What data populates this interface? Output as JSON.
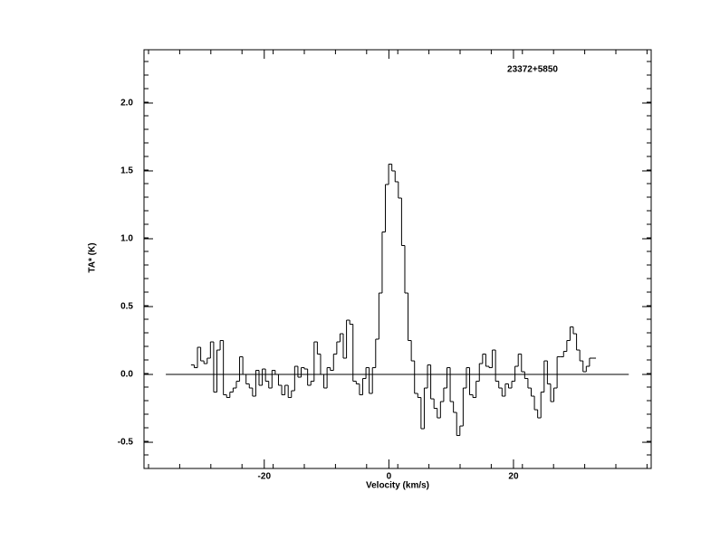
{
  "chart_data": {
    "type": "step",
    "title": "23372+5850",
    "x_label": "Velocity (km/s)",
    "y_label": "TA* (K)",
    "xlim": [
      -39.3,
      42.1
    ],
    "ylim": [
      -0.693,
      2.393
    ],
    "xticks": [
      -20,
      0,
      20
    ],
    "yticks": [
      -0.5,
      {
        "value": 0,
        "label": "0.0"
      },
      0.5,
      {
        "value": 1,
        "label": "1.0"
      },
      1.5,
      {
        "value": 2,
        "label": "2.0"
      }
    ],
    "color": "#000000",
    "reference_line": {
      "y": 0,
      "x": [
        -35.8,
        38.5
      ]
    },
    "series": [
      {
        "x": [
          -31.5,
          -30.98,
          -30.46,
          -29.94,
          -29.42,
          -28.9,
          -28.38,
          -27.86,
          -27.34,
          -26.82,
          -26.3,
          -25.78,
          -25.26,
          -24.74,
          -24.22,
          -23.7,
          -23.18,
          -22.66,
          -22.14,
          -21.62,
          -21.1,
          -20.58,
          -20.06,
          -19.54,
          -19.02,
          -18.5,
          -17.98,
          -17.46,
          -16.94,
          -16.42,
          -15.9,
          -15.38,
          -14.86,
          -14.34,
          -13.82,
          -13.3,
          -12.78,
          -12.26,
          -11.74,
          -11.22,
          -10.7,
          -10.18,
          -9.66,
          -9.14,
          -8.62,
          -8.1,
          -7.58,
          -7.06,
          -6.54,
          -6.02,
          -5.5,
          -4.98,
          -4.46,
          -3.94,
          -3.42,
          -2.9,
          -2.38,
          -1.86,
          -1.34,
          -0.82,
          -0.3,
          0.22,
          0.74,
          1.26,
          1.78,
          2.3,
          2.82,
          3.34,
          3.86,
          4.38,
          4.9,
          5.42,
          5.94,
          6.46,
          6.98,
          7.5,
          8.02,
          8.54,
          9.06,
          9.58,
          10.1,
          10.62,
          11.14,
          11.66,
          12.18,
          12.7,
          13.22,
          13.74,
          14.26,
          14.78,
          15.3,
          15.82,
          16.34,
          16.86,
          17.38,
          17.9,
          18.42,
          18.94,
          19.46,
          19.98,
          20.5,
          21.02,
          21.54,
          22.06,
          22.58,
          23.1,
          23.62,
          24.14,
          24.66,
          25.18,
          25.7,
          26.22,
          26.74,
          27.26,
          27.78,
          28.3,
          28.82,
          29.34,
          29.86,
          30.38,
          30.9,
          31.42,
          31.94,
          32.46,
          32.98
        ],
        "values": [
          0.07,
          0.05,
          0.2,
          0.1,
          0.08,
          0.12,
          0.24,
          -0.13,
          0.18,
          0.25,
          -0.15,
          -0.17,
          -0.13,
          -0.1,
          -0.05,
          0.13,
          0.0,
          -0.07,
          -0.1,
          -0.16,
          0.03,
          -0.08,
          0.04,
          -0.05,
          -0.1,
          0.03,
          0.0,
          -0.08,
          -0.15,
          -0.08,
          -0.17,
          -0.12,
          0.06,
          -0.02,
          0.05,
          0.04,
          -0.08,
          -0.05,
          0.24,
          0.15,
          0.0,
          -0.1,
          0.05,
          0.03,
          0.15,
          0.24,
          0.3,
          0.12,
          0.4,
          0.37,
          -0.05,
          -0.07,
          -0.15,
          -0.03,
          0.05,
          -0.14,
          0.05,
          0.26,
          0.6,
          1.05,
          1.4,
          1.55,
          1.5,
          1.42,
          1.3,
          0.95,
          0.6,
          0.25,
          0.1,
          -0.14,
          -0.17,
          -0.4,
          -0.1,
          0.07,
          -0.18,
          -0.25,
          -0.32,
          -0.2,
          -0.1,
          0.05,
          -0.2,
          -0.28,
          -0.45,
          -0.38,
          -0.1,
          0.05,
          -0.15,
          -0.17,
          -0.05,
          0.08,
          0.15,
          0.06,
          0.05,
          0.18,
          -0.05,
          -0.1,
          -0.16,
          -0.07,
          -0.1,
          -0.05,
          0.06,
          0.15,
          0.02,
          -0.03,
          -0.1,
          -0.16,
          -0.26,
          -0.32,
          -0.13,
          0.1,
          -0.07,
          -0.2,
          -0.1,
          0.13,
          0.13,
          0.17,
          0.25,
          0.35,
          0.3,
          0.18,
          0.1,
          0.02,
          0.06,
          0.12,
          0.12
        ]
      }
    ]
  }
}
